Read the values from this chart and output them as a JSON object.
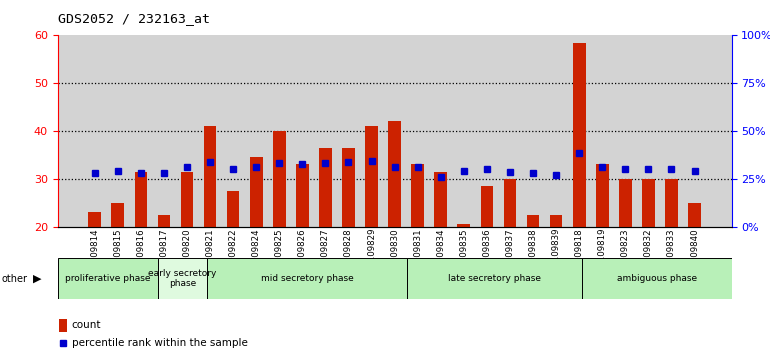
{
  "title": "GDS2052 / 232163_at",
  "samples": [
    "GSM109814",
    "GSM109815",
    "GSM109816",
    "GSM109817",
    "GSM109820",
    "GSM109821",
    "GSM109822",
    "GSM109824",
    "GSM109825",
    "GSM109826",
    "GSM109827",
    "GSM109828",
    "GSM109829",
    "GSM109830",
    "GSM109831",
    "GSM109834",
    "GSM109835",
    "GSM109836",
    "GSM109837",
    "GSM109838",
    "GSM109839",
    "GSM109818",
    "GSM109819",
    "GSM109823",
    "GSM109832",
    "GSM109833",
    "GSM109840"
  ],
  "counts": [
    23,
    25,
    31.5,
    22.5,
    31.5,
    41,
    27.5,
    34.5,
    40,
    33,
    36.5,
    36.5,
    41,
    42,
    33,
    31.5,
    20.5,
    28.5,
    30,
    22.5,
    22.5,
    58.5,
    33,
    30,
    30,
    30,
    25
  ],
  "percentiles": [
    28,
    29,
    28,
    28,
    31,
    34,
    30,
    31,
    33,
    32.5,
    33,
    34,
    34.5,
    31,
    31,
    26,
    29,
    30,
    28.5,
    28,
    27,
    38.5,
    31,
    30,
    30,
    30,
    29
  ],
  "phases": [
    {
      "name": "proliferative phase",
      "start": 0,
      "end": 4,
      "color": "#b8f0b8"
    },
    {
      "name": "early secretory\nphase",
      "start": 4,
      "end": 6,
      "color": "#dffadf"
    },
    {
      "name": "mid secretory phase",
      "start": 6,
      "end": 14,
      "color": "#b8f0b8"
    },
    {
      "name": "late secretory phase",
      "start": 14,
      "end": 21,
      "color": "#b8f0b8"
    },
    {
      "name": "ambiguous phase",
      "start": 21,
      "end": 27,
      "color": "#b8f0b8"
    }
  ],
  "bar_color": "#cc2200",
  "marker_color": "#0000cc",
  "ylim": [
    20,
    60
  ],
  "y2lim": [
    0,
    100
  ],
  "yticks": [
    20,
    30,
    40,
    50,
    60
  ],
  "y2ticks": [
    0,
    25,
    50,
    75,
    100
  ],
  "y2labels": [
    "0%",
    "25%",
    "50%",
    "75%",
    "100%"
  ],
  "bg_color": "#d3d3d3",
  "dotted_lines": [
    30,
    40,
    50
  ]
}
